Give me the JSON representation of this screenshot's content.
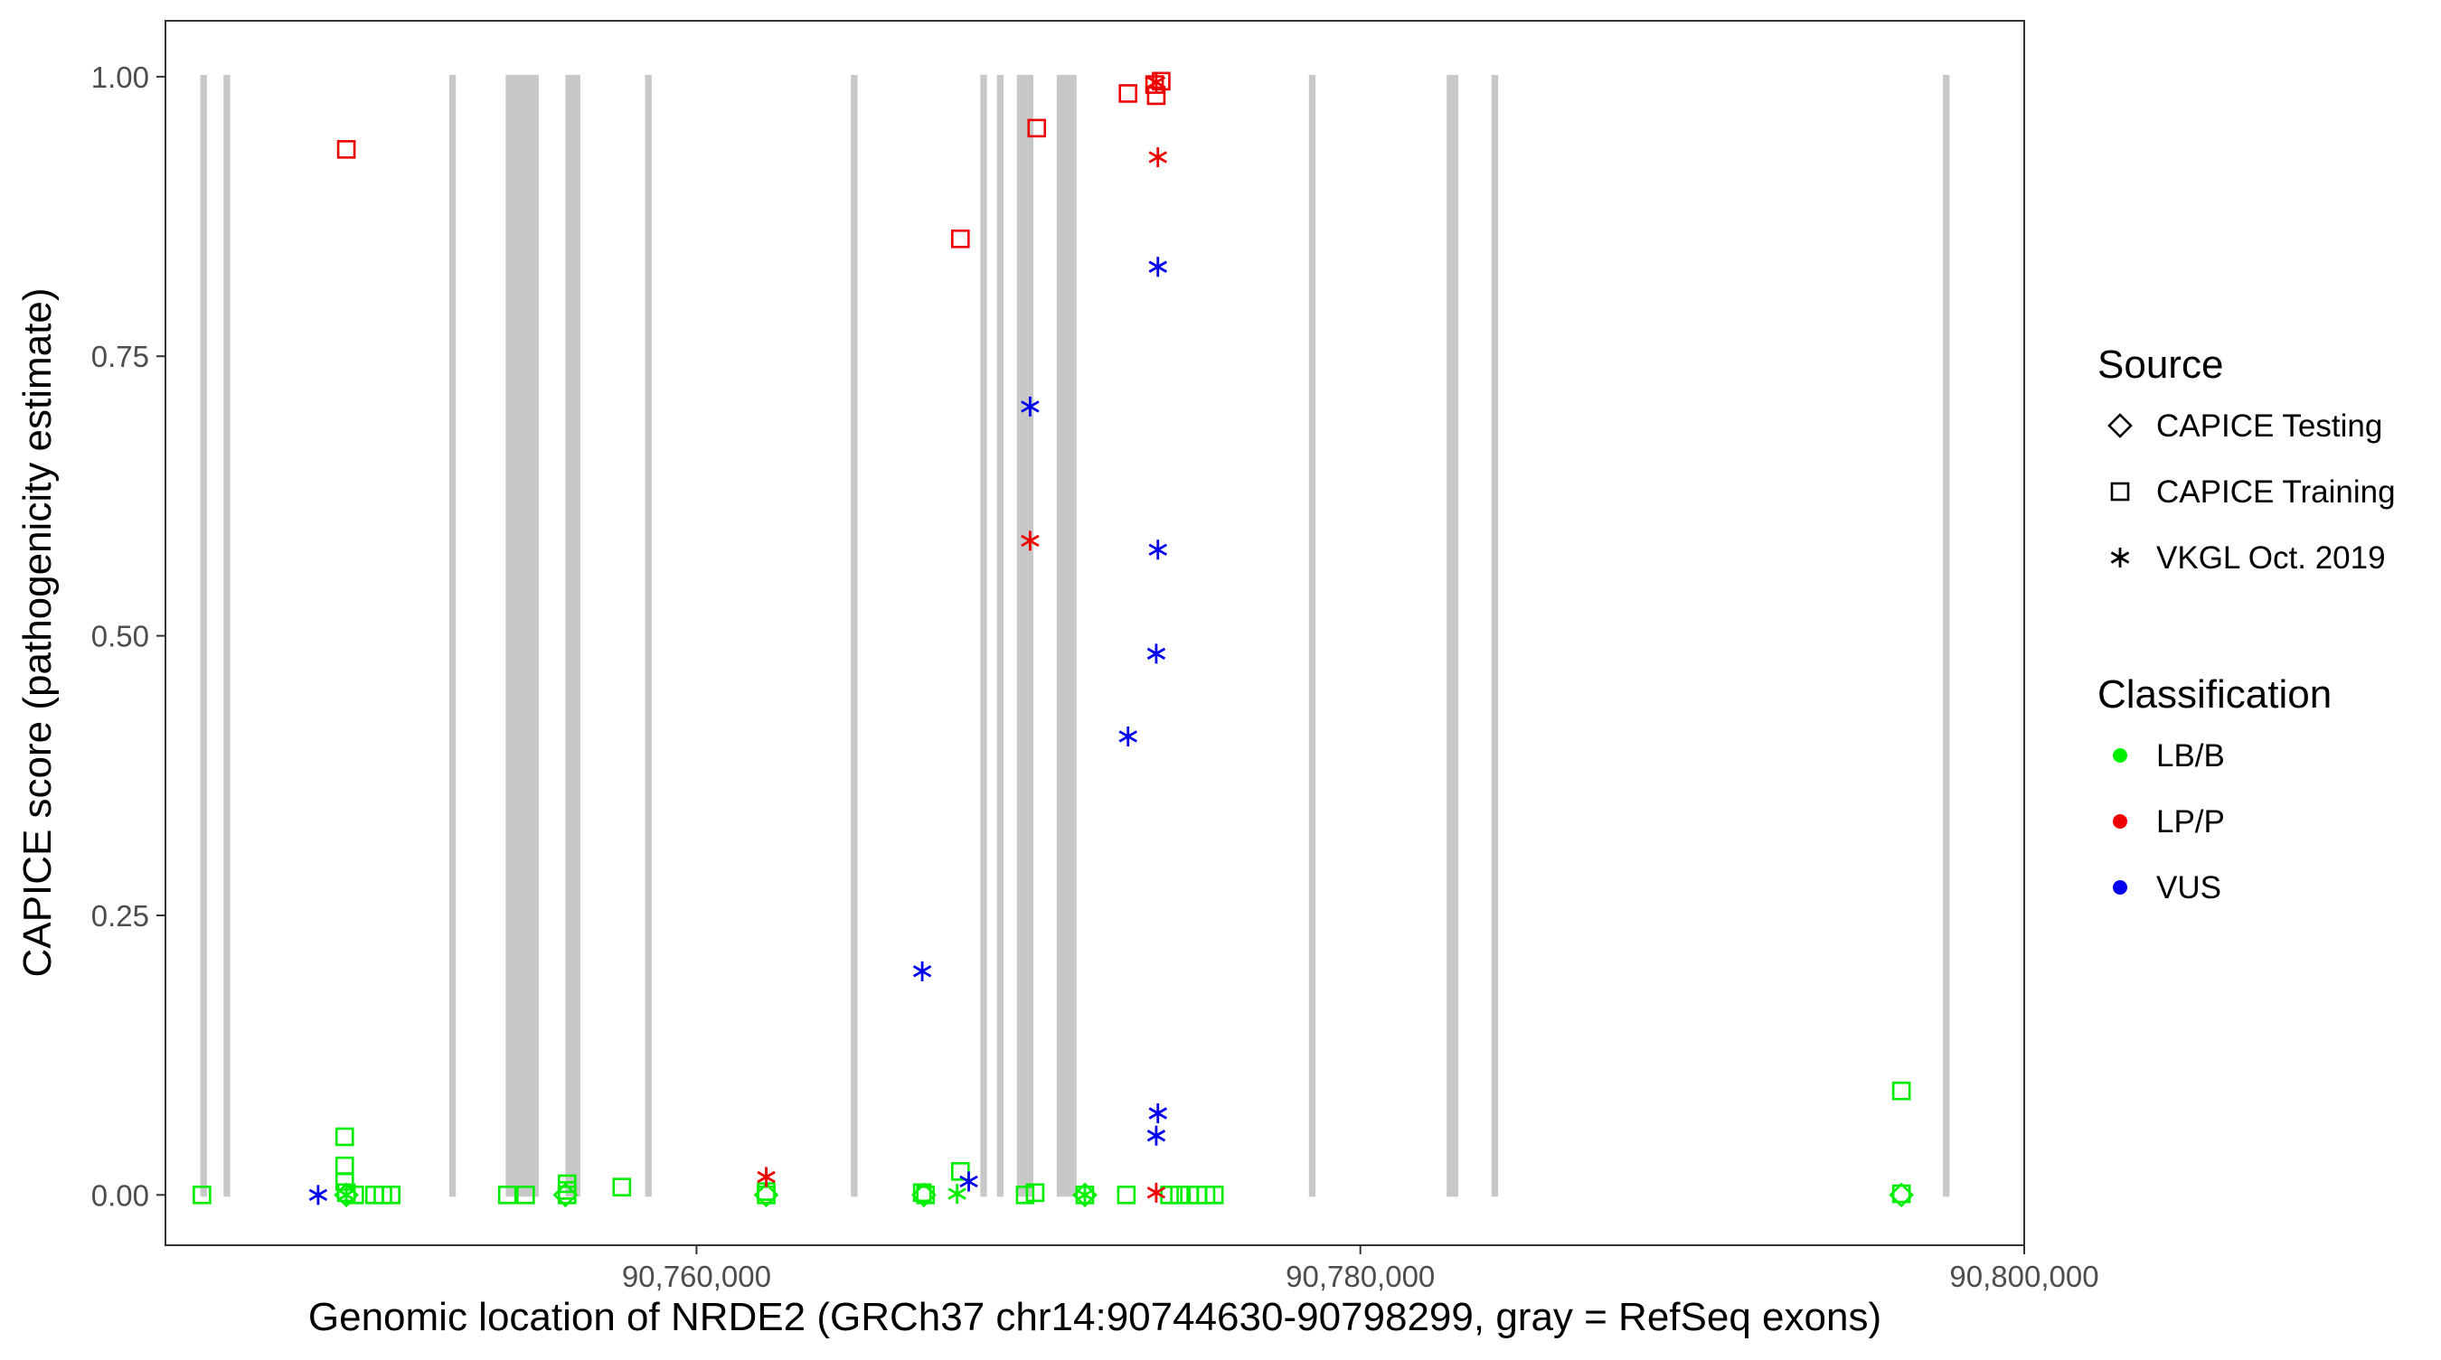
{
  "chart_data": {
    "type": "scatter",
    "title": "",
    "xlabel": "Genomic location of NRDE2 (GRCh37 chr14:90744630-90798299, gray = RefSeq exons)",
    "ylabel": "CAPICE score (pathogenicity estimate)",
    "xlim": [
      90744000,
      90800000
    ],
    "ylim": [
      -0.045,
      1.05
    ],
    "x_ticks": [
      90760000,
      90780000,
      90800000
    ],
    "x_tick_labels": [
      "90,760,000",
      "90,780,000",
      "90,800,000"
    ],
    "y_ticks": [
      0,
      0.25,
      0.5,
      0.75,
      1
    ],
    "y_tick_labels": [
      "0.00",
      "0.25",
      "0.50",
      "0.75",
      "1.00"
    ],
    "grid": false,
    "legend_position": "right",
    "exons": [
      [
        90745050,
        90745250
      ],
      [
        90745750,
        90745950
      ],
      [
        90752550,
        90752750
      ],
      [
        90754250,
        90755250
      ],
      [
        90756050,
        90756500
      ],
      [
        90758450,
        90758650
      ],
      [
        90764650,
        90764850
      ],
      [
        90768550,
        90768750
      ],
      [
        90769050,
        90769250
      ],
      [
        90769650,
        90770150
      ],
      [
        90770850,
        90771450
      ],
      [
        90778450,
        90778650
      ],
      [
        90782600,
        90782950
      ],
      [
        90783950,
        90784150
      ],
      [
        90797550,
        90797750
      ]
    ],
    "legend": {
      "source_title": "Source",
      "source_items": [
        {
          "label": "CAPICE Testing",
          "shape": "diamond"
        },
        {
          "label": "CAPICE Training",
          "shape": "square"
        },
        {
          "label": "VKGL Oct. 2019",
          "shape": "asterisk"
        }
      ],
      "class_title": "Classification",
      "class_items": [
        {
          "label": "LB/B",
          "color": "#00ee00"
        },
        {
          "label": "LP/P",
          "color": "#ee0000"
        },
        {
          "label": "VUS",
          "color": "#0000ee"
        }
      ]
    },
    "series": [
      {
        "name": "CAPICE Training",
        "shape": "square",
        "points": [
          {
            "x": 90745100,
            "y": 0,
            "class": "LB/B"
          },
          {
            "x": 90749450,
            "y": 0.935,
            "class": "LP/P"
          },
          {
            "x": 90749400,
            "y": 0.052,
            "class": "LB/B"
          },
          {
            "x": 90749400,
            "y": 0.026,
            "class": "LB/B"
          },
          {
            "x": 90749400,
            "y": 0.012,
            "class": "LB/B"
          },
          {
            "x": 90749450,
            "y": 0.002,
            "class": "LB/B"
          },
          {
            "x": 90749700,
            "y": 0,
            "class": "LB/B"
          },
          {
            "x": 90750300,
            "y": 0,
            "class": "LB/B"
          },
          {
            "x": 90750550,
            "y": 0,
            "class": "LB/B"
          },
          {
            "x": 90750800,
            "y": 0,
            "class": "LB/B"
          },
          {
            "x": 90754300,
            "y": 0,
            "class": "LB/B"
          },
          {
            "x": 90754850,
            "y": 0,
            "class": "LB/B"
          },
          {
            "x": 90756100,
            "y": 0.01,
            "class": "LB/B"
          },
          {
            "x": 90756100,
            "y": 0.004,
            "class": "LB/B"
          },
          {
            "x": 90756100,
            "y": 0,
            "class": "LB/B"
          },
          {
            "x": 90757750,
            "y": 0.007,
            "class": "LB/B"
          },
          {
            "x": 90762100,
            "y": 0.003,
            "class": "LB/B"
          },
          {
            "x": 90762100,
            "y": 0,
            "class": "LB/B"
          },
          {
            "x": 90766800,
            "y": 0.002,
            "class": "LB/B"
          },
          {
            "x": 90766900,
            "y": 0,
            "class": "LB/B"
          },
          {
            "x": 90767950,
            "y": 0.021,
            "class": "LB/B"
          },
          {
            "x": 90767950,
            "y": 0.855,
            "class": "LP/P"
          },
          {
            "x": 90769900,
            "y": 0,
            "class": "LB/B"
          },
          {
            "x": 90770200,
            "y": 0.002,
            "class": "LB/B"
          },
          {
            "x": 90770250,
            "y": 0.954,
            "class": "LP/P"
          },
          {
            "x": 90771700,
            "y": 0,
            "class": "LB/B"
          },
          {
            "x": 90772950,
            "y": 0,
            "class": "LB/B"
          },
          {
            "x": 90773000,
            "y": 0.985,
            "class": "LP/P"
          },
          {
            "x": 90773800,
            "y": 0.993,
            "class": "LP/P"
          },
          {
            "x": 90774000,
            "y": 0.996,
            "class": "LP/P"
          },
          {
            "x": 90773850,
            "y": 0.983,
            "class": "LP/P"
          },
          {
            "x": 90774250,
            "y": 0,
            "class": "LB/B"
          },
          {
            "x": 90774550,
            "y": 0,
            "class": "LB/B"
          },
          {
            "x": 90774850,
            "y": 0,
            "class": "LB/B"
          },
          {
            "x": 90775100,
            "y": 0,
            "class": "LB/B"
          },
          {
            "x": 90775350,
            "y": 0,
            "class": "LB/B"
          },
          {
            "x": 90775600,
            "y": 0,
            "class": "LB/B"
          },
          {
            "x": 90796300,
            "y": 0.093,
            "class": "LB/B"
          },
          {
            "x": 90796300,
            "y": 0.001,
            "class": "LB/B"
          }
        ]
      },
      {
        "name": "CAPICE Testing",
        "shape": "diamond",
        "points": [
          {
            "x": 90749450,
            "y": 0,
            "class": "LB/B"
          },
          {
            "x": 90756050,
            "y": 0,
            "class": "LB/B"
          },
          {
            "x": 90762100,
            "y": 0,
            "class": "LB/B"
          },
          {
            "x": 90766850,
            "y": 0,
            "class": "LB/B"
          },
          {
            "x": 90771700,
            "y": 0,
            "class": "LB/B"
          },
          {
            "x": 90796300,
            "y": 0,
            "class": "LB/B"
          }
        ]
      },
      {
        "name": "VKGL Oct. 2019",
        "shape": "asterisk",
        "points": [
          {
            "x": 90748600,
            "y": 0,
            "class": "VUS"
          },
          {
            "x": 90749450,
            "y": 0,
            "class": "LB/B"
          },
          {
            "x": 90762100,
            "y": 0.016,
            "class": "LP/P"
          },
          {
            "x": 90766800,
            "y": 0.2,
            "class": "VUS"
          },
          {
            "x": 90767850,
            "y": 0.001,
            "class": "LB/B"
          },
          {
            "x": 90768200,
            "y": 0.012,
            "class": "VUS"
          },
          {
            "x": 90770050,
            "y": 0.705,
            "class": "VUS"
          },
          {
            "x": 90770050,
            "y": 0.585,
            "class": "LP/P"
          },
          {
            "x": 90771700,
            "y": 0,
            "class": "LB/B"
          },
          {
            "x": 90773000,
            "y": 0.41,
            "class": "VUS"
          },
          {
            "x": 90773850,
            "y": 0.995,
            "class": "LP/P"
          },
          {
            "x": 90773900,
            "y": 0.928,
            "class": "LP/P"
          },
          {
            "x": 90773900,
            "y": 0.83,
            "class": "VUS"
          },
          {
            "x": 90773900,
            "y": 0.577,
            "class": "VUS"
          },
          {
            "x": 90773850,
            "y": 0.484,
            "class": "VUS"
          },
          {
            "x": 90773900,
            "y": 0.073,
            "class": "VUS"
          },
          {
            "x": 90773850,
            "y": 0.053,
            "class": "VUS"
          },
          {
            "x": 90773850,
            "y": 0.002,
            "class": "LP/P"
          }
        ]
      }
    ]
  }
}
